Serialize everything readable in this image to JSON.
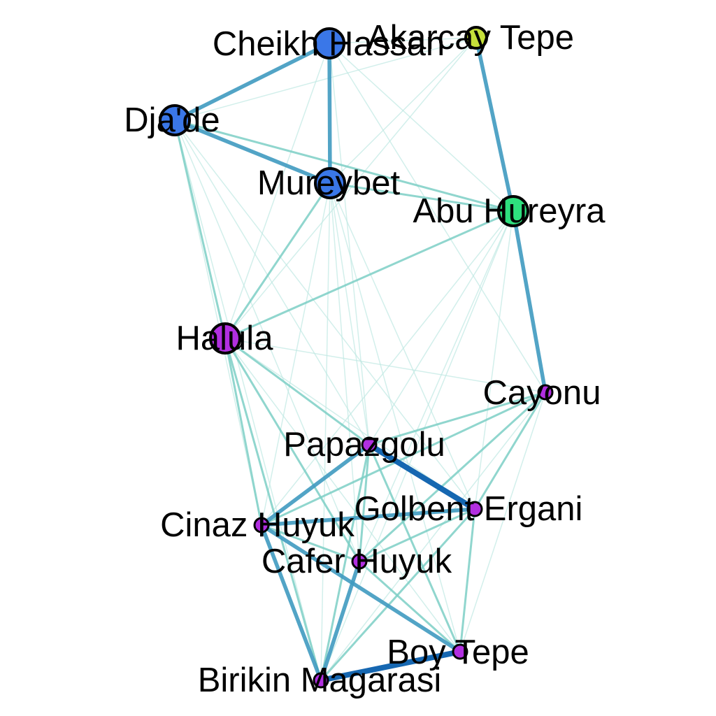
{
  "colors": {
    "cluster_blue": "#3a77e8",
    "cluster_green": "#2ee07e",
    "cluster_yellow": "#c6e03a",
    "cluster_purple": "#b12fe0",
    "edge_strong": "#0a5fad",
    "edge_medium": "#3f9ac0",
    "edge_weak": "#7ccfc6",
    "edge_faint": "#bfe8e2",
    "node_outline": "#000000"
  },
  "nodes": [
    {
      "id": "cheikh_hassan",
      "name": "Cheikh Hassan",
      "cluster": "cluster_blue",
      "size": "large"
    },
    {
      "id": "akarcay_tepe",
      "name": "Akarcay Tepe",
      "cluster": "cluster_yellow",
      "size": "medium"
    },
    {
      "id": "jade",
      "name": "Dja'de",
      "cluster": "cluster_blue",
      "size": "large"
    },
    {
      "id": "mureybet",
      "name": "Mureybet",
      "cluster": "cluster_blue",
      "size": "large"
    },
    {
      "id": "abu_hureyra",
      "name": "Abu Hureyra",
      "cluster": "cluster_green",
      "size": "large"
    },
    {
      "id": "halula",
      "name": "Halula",
      "cluster": "cluster_purple",
      "size": "large"
    },
    {
      "id": "cayonu",
      "name": "Cayonu",
      "cluster": "cluster_purple",
      "size": "small"
    },
    {
      "id": "papazgolu",
      "name": "Papazgolu",
      "cluster": "cluster_purple",
      "size": "small"
    },
    {
      "id": "golbent_ergani",
      "name": "Golbent Ergani",
      "cluster": "cluster_purple",
      "size": "small"
    },
    {
      "id": "cinaz_huyuk",
      "name": "Cinaz Huyuk",
      "cluster": "cluster_purple",
      "size": "small"
    },
    {
      "id": "cafer_huyuk",
      "name": "Cafer Huyuk",
      "cluster": "cluster_purple",
      "size": "small"
    },
    {
      "id": "boy_tepe",
      "name": "Boy Tepe",
      "cluster": "cluster_purple",
      "size": "small"
    },
    {
      "id": "birikin_magarasi",
      "name": "Birikin Magarasi",
      "cluster": "cluster_purple",
      "size": "small"
    }
  ],
  "edges": [
    {
      "source": "cheikh_hassan",
      "target": "jade",
      "strength": "medium"
    },
    {
      "source": "cheikh_hassan",
      "target": "mureybet",
      "strength": "medium"
    },
    {
      "source": "jade",
      "target": "mureybet",
      "strength": "medium"
    },
    {
      "source": "akarcay_tepe",
      "target": "abu_hureyra",
      "strength": "medium"
    },
    {
      "source": "abu_hureyra",
      "target": "cayonu",
      "strength": "medium"
    },
    {
      "source": "papazgolu",
      "target": "golbent_ergani",
      "strength": "strong"
    },
    {
      "source": "papazgolu",
      "target": "cinaz_huyuk",
      "strength": "medium"
    },
    {
      "source": "cinaz_huyuk",
      "target": "boy_tepe",
      "strength": "medium"
    },
    {
      "source": "cafer_huyuk",
      "target": "birikin_magarasi",
      "strength": "medium"
    },
    {
      "source": "birikin_magarasi",
      "target": "boy_tepe",
      "strength": "strong"
    },
    {
      "source": "cinaz_huyuk",
      "target": "golbent_ergani",
      "strength": "medium"
    },
    {
      "source": "mureybet",
      "target": "abu_hureyra",
      "strength": "weak"
    },
    {
      "source": "jade",
      "target": "abu_hureyra",
      "strength": "weak"
    },
    {
      "source": "mureybet",
      "target": "halula",
      "strength": "weak"
    },
    {
      "source": "abu_hureyra",
      "target": "halula",
      "strength": "weak"
    },
    {
      "source": "cheikh_hassan",
      "target": "akarcay_tepe",
      "strength": "faint"
    },
    {
      "source": "cheikh_hassan",
      "target": "abu_hureyra",
      "strength": "faint"
    },
    {
      "source": "jade",
      "target": "halula",
      "strength": "weak"
    },
    {
      "source": "halula",
      "target": "papazgolu",
      "strength": "weak"
    },
    {
      "source": "halula",
      "target": "cinaz_huyuk",
      "strength": "weak"
    },
    {
      "source": "halula",
      "target": "cafer_huyuk",
      "strength": "weak"
    },
    {
      "source": "halula",
      "target": "cayonu",
      "strength": "faint"
    },
    {
      "source": "halula",
      "target": "birikin_magarasi",
      "strength": "weak"
    },
    {
      "source": "halula",
      "target": "golbent_ergani",
      "strength": "faint"
    },
    {
      "source": "halula",
      "target": "boy_tepe",
      "strength": "faint"
    },
    {
      "source": "cayonu",
      "target": "papazgolu",
      "strength": "weak"
    },
    {
      "source": "cayonu",
      "target": "cinaz_huyuk",
      "strength": "weak"
    },
    {
      "source": "cayonu",
      "target": "cafer_huyuk",
      "strength": "weak"
    },
    {
      "source": "cayonu",
      "target": "golbent_ergani",
      "strength": "weak"
    },
    {
      "source": "cayonu",
      "target": "boy_tepe",
      "strength": "faint"
    },
    {
      "source": "cayonu",
      "target": "birikin_magarasi",
      "strength": "faint"
    },
    {
      "source": "papazgolu",
      "target": "cafer_huyuk",
      "strength": "weak"
    },
    {
      "source": "papazgolu",
      "target": "birikin_magarasi",
      "strength": "weak"
    },
    {
      "source": "papazgolu",
      "target": "boy_tepe",
      "strength": "weak"
    },
    {
      "source": "cinaz_huyuk",
      "target": "cafer_huyuk",
      "strength": "weak"
    },
    {
      "source": "cinaz_huyuk",
      "target": "birikin_magarasi",
      "strength": "medium"
    },
    {
      "source": "cafer_huyuk",
      "target": "golbent_ergani",
      "strength": "weak"
    },
    {
      "source": "cafer_huyuk",
      "target": "boy_tepe",
      "strength": "weak"
    },
    {
      "source": "golbent_ergani",
      "target": "boy_tepe",
      "strength": "weak"
    },
    {
      "source": "golbent_ergani",
      "target": "birikin_magarasi",
      "strength": "weak"
    },
    {
      "source": "mureybet",
      "target": "papazgolu",
      "strength": "faint"
    },
    {
      "source": "mureybet",
      "target": "golbent_ergani",
      "strength": "faint"
    },
    {
      "source": "mureybet",
      "target": "cafer_huyuk",
      "strength": "faint"
    },
    {
      "source": "mureybet",
      "target": "boy_tepe",
      "strength": "faint"
    },
    {
      "source": "mureybet",
      "target": "cinaz_huyuk",
      "strength": "faint"
    },
    {
      "source": "mureybet",
      "target": "birikin_magarasi",
      "strength": "faint"
    },
    {
      "source": "mureybet",
      "target": "akarcay_tepe",
      "strength": "faint"
    },
    {
      "source": "abu_hureyra",
      "target": "papazgolu",
      "strength": "faint"
    },
    {
      "source": "abu_hureyra",
      "target": "golbent_ergani",
      "strength": "faint"
    },
    {
      "source": "abu_hureyra",
      "target": "cafer_huyuk",
      "strength": "faint"
    },
    {
      "source": "abu_hureyra",
      "target": "cinaz_huyuk",
      "strength": "faint"
    },
    {
      "source": "abu_hureyra",
      "target": "birikin_magarasi",
      "strength": "faint"
    },
    {
      "source": "akarcay_tepe",
      "target": "jade",
      "strength": "faint"
    },
    {
      "source": "akarcay_tepe",
      "target": "halula",
      "strength": "faint"
    },
    {
      "source": "cheikh_hassan",
      "target": "halula",
      "strength": "faint"
    },
    {
      "source": "cheikh_hassan",
      "target": "papazgolu",
      "strength": "faint"
    },
    {
      "source": "cheikh_hassan",
      "target": "cayonu",
      "strength": "faint"
    },
    {
      "source": "jade",
      "target": "papazgolu",
      "strength": "faint"
    },
    {
      "source": "jade",
      "target": "cinaz_huyuk",
      "strength": "faint"
    },
    {
      "source": "jade",
      "target": "cafer_huyuk",
      "strength": "faint"
    },
    {
      "source": "jade",
      "target": "golbent_ergani",
      "strength": "faint"
    },
    {
      "source": "jade",
      "target": "birikin_magarasi",
      "strength": "faint"
    }
  ]
}
